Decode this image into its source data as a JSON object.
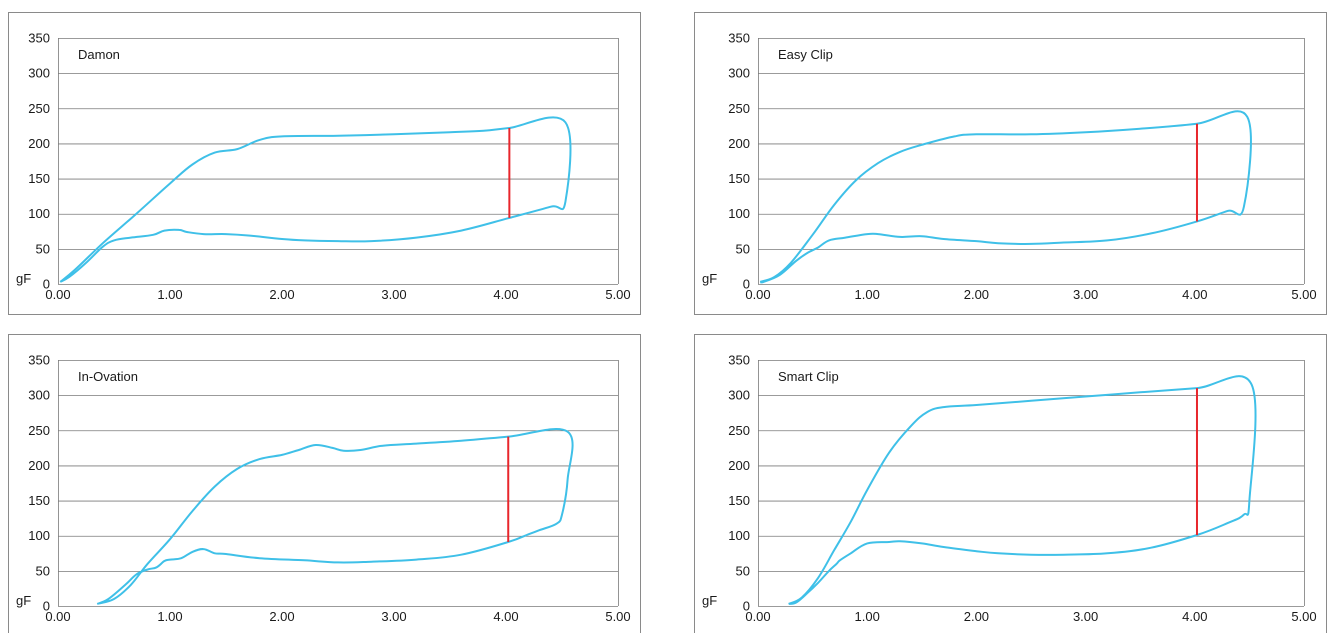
{
  "colors": {
    "curve": "#3fc0e8",
    "marker": "#e8262c",
    "grid": "#7a7a7a",
    "frame": "#8a8a8a",
    "text": "#1a1a1a"
  },
  "chart_data": [
    {
      "type": "line",
      "title": "Damon",
      "ylabel": "gF",
      "xlim": [
        0,
        5
      ],
      "ylim": [
        0,
        350
      ],
      "x_ticks": [
        "0.00",
        "1.00",
        "2.00",
        "3.00",
        "4.00",
        "5.00"
      ],
      "y_ticks": [
        "0",
        "50",
        "100",
        "150",
        "200",
        "250",
        "300",
        "350"
      ],
      "grid": true,
      "series": [
        {
          "values": [
            [
              0.02,
              3
            ],
            [
              0.15,
              20
            ],
            [
              0.4,
              58
            ],
            [
              0.7,
              100
            ],
            [
              1.0,
              143
            ],
            [
              1.2,
              170
            ],
            [
              1.4,
              187
            ],
            [
              1.6,
              192
            ],
            [
              1.8,
              205
            ],
            [
              2.0,
              210
            ],
            [
              2.5,
              211
            ],
            [
              3.0,
              213
            ],
            [
              3.5,
              216
            ],
            [
              3.8,
              218
            ],
            [
              4.03,
              222
            ],
            [
              4.53,
              230
            ],
            [
              4.53,
              117
            ],
            [
              4.4,
              110
            ],
            [
              4.03,
              94
            ],
            [
              3.6,
              76
            ],
            [
              3.2,
              66
            ],
            [
              2.8,
              61
            ],
            [
              2.5,
              61
            ],
            [
              2.2,
              62
            ],
            [
              2.0,
              64
            ],
            [
              1.7,
              69
            ],
            [
              1.5,
              71
            ],
            [
              1.3,
              71
            ],
            [
              1.15,
              74
            ],
            [
              1.08,
              77
            ],
            [
              0.95,
              76
            ],
            [
              0.85,
              70
            ],
            [
              0.65,
              66
            ],
            [
              0.5,
              62
            ],
            [
              0.4,
              53
            ],
            [
              0.25,
              30
            ],
            [
              0.1,
              10
            ],
            [
              0.02,
              3
            ]
          ]
        },
        {
          "values": [
            [
              4.03,
              222
            ],
            [
              4.03,
              94
            ]
          ]
        }
      ]
    },
    {
      "type": "line",
      "title": "Easy Clip",
      "ylabel": "gF",
      "xlim": [
        0,
        5
      ],
      "ylim": [
        0,
        350
      ],
      "x_ticks": [
        "0.00",
        "1.00",
        "2.00",
        "3.00",
        "4.00",
        "5.00"
      ],
      "y_ticks": [
        "0",
        "50",
        "100",
        "150",
        "200",
        "250",
        "300",
        "350"
      ],
      "grid": true,
      "series": [
        {
          "values": [
            [
              0.02,
              3
            ],
            [
              0.15,
              10
            ],
            [
              0.3,
              30
            ],
            [
              0.5,
              70
            ],
            [
              0.7,
              113
            ],
            [
              0.9,
              148
            ],
            [
              1.1,
              172
            ],
            [
              1.3,
              188
            ],
            [
              1.5,
              198
            ],
            [
              1.8,
              210
            ],
            [
              2.0,
              213
            ],
            [
              2.5,
              213
            ],
            [
              3.0,
              216
            ],
            [
              3.5,
              221
            ],
            [
              4.02,
              228
            ],
            [
              4.48,
              238
            ],
            [
              4.45,
              110
            ],
            [
              4.3,
              104
            ],
            [
              4.02,
              89
            ],
            [
              3.6,
              72
            ],
            [
              3.2,
              62
            ],
            [
              2.8,
              59
            ],
            [
              2.5,
              57
            ],
            [
              2.2,
              58
            ],
            [
              2.0,
              61
            ],
            [
              1.7,
              64
            ],
            [
              1.5,
              68
            ],
            [
              1.3,
              67
            ],
            [
              1.1,
              71
            ],
            [
              1.0,
              71
            ],
            [
              0.8,
              66
            ],
            [
              0.65,
              62
            ],
            [
              0.55,
              52
            ],
            [
              0.45,
              44
            ],
            [
              0.35,
              33
            ],
            [
              0.2,
              13
            ],
            [
              0.05,
              3
            ],
            [
              0.02,
              3
            ]
          ]
        },
        {
          "values": [
            [
              4.02,
              228
            ],
            [
              4.02,
              89
            ]
          ]
        }
      ]
    },
    {
      "type": "line",
      "title": "In-Ovation",
      "ylabel": "gF",
      "xlim": [
        0,
        5
      ],
      "ylim": [
        0,
        350
      ],
      "x_ticks": [
        "0.00",
        "1.00",
        "2.00",
        "3.00",
        "4.00",
        "5.00"
      ],
      "y_ticks": [
        "0",
        "50",
        "100",
        "150",
        "200",
        "250",
        "300",
        "350"
      ],
      "grid": true,
      "series": [
        {
          "values": [
            [
              0.35,
              3
            ],
            [
              0.5,
              10
            ],
            [
              0.65,
              30
            ],
            [
              0.8,
              60
            ],
            [
              1.0,
              95
            ],
            [
              1.2,
              135
            ],
            [
              1.4,
              170
            ],
            [
              1.6,
              195
            ],
            [
              1.8,
              209
            ],
            [
              2.0,
              215
            ],
            [
              2.15,
              222
            ],
            [
              2.3,
              229
            ],
            [
              2.45,
              225
            ],
            [
              2.55,
              221
            ],
            [
              2.7,
              222
            ],
            [
              2.9,
              228
            ],
            [
              3.2,
              231
            ],
            [
              3.6,
              235
            ],
            [
              4.02,
              241
            ],
            [
              4.55,
              248
            ],
            [
              4.55,
              180
            ],
            [
              4.5,
              130
            ],
            [
              4.45,
              117
            ],
            [
              4.3,
              108
            ],
            [
              4.2,
              102
            ],
            [
              4.02,
              91
            ],
            [
              3.6,
              73
            ],
            [
              3.2,
              66
            ],
            [
              2.8,
              63
            ],
            [
              2.5,
              62
            ],
            [
              2.2,
              65
            ],
            [
              1.8,
              68
            ],
            [
              1.5,
              74
            ],
            [
              1.4,
              75
            ],
            [
              1.3,
              81
            ],
            [
              1.2,
              77
            ],
            [
              1.1,
              68
            ],
            [
              1.0,
              66
            ],
            [
              0.95,
              64
            ],
            [
              0.88,
              55
            ],
            [
              0.8,
              52
            ],
            [
              0.7,
              45
            ],
            [
              0.6,
              30
            ],
            [
              0.45,
              10
            ],
            [
              0.35,
              3
            ]
          ]
        },
        {
          "values": [
            [
              4.02,
              241
            ],
            [
              4.02,
              91
            ]
          ]
        }
      ]
    },
    {
      "type": "line",
      "title": "Smart Clip",
      "ylabel": "gF",
      "xlim": [
        0,
        5
      ],
      "ylim": [
        0,
        350
      ],
      "x_ticks": [
        "0.00",
        "1.00",
        "2.00",
        "3.00",
        "4.00",
        "5.00"
      ],
      "y_ticks": [
        "0",
        "50",
        "100",
        "150",
        "200",
        "250",
        "300",
        "350"
      ],
      "grid": true,
      "series": [
        {
          "values": [
            [
              0.28,
              3
            ],
            [
              0.4,
              12
            ],
            [
              0.55,
              40
            ],
            [
              0.7,
              80
            ],
            [
              0.85,
              120
            ],
            [
              1.0,
              165
            ],
            [
              1.2,
              218
            ],
            [
              1.4,
              256
            ],
            [
              1.55,
              276
            ],
            [
              1.7,
              283
            ],
            [
              2.0,
              286
            ],
            [
              2.5,
              292
            ],
            [
              3.0,
              298
            ],
            [
              3.5,
              304
            ],
            [
              4.02,
              310
            ],
            [
              4.52,
              315
            ],
            [
              4.5,
              150
            ],
            [
              4.45,
              130
            ],
            [
              4.3,
              118
            ],
            [
              4.02,
              101
            ],
            [
              3.6,
              83
            ],
            [
              3.2,
              75
            ],
            [
              2.8,
              73
            ],
            [
              2.5,
              73
            ],
            [
              2.2,
              75
            ],
            [
              2.0,
              78
            ],
            [
              1.7,
              84
            ],
            [
              1.5,
              89
            ],
            [
              1.3,
              92
            ],
            [
              1.2,
              91
            ],
            [
              1.0,
              89
            ],
            [
              0.85,
              75
            ],
            [
              0.75,
              65
            ],
            [
              0.72,
              60
            ],
            [
              0.65,
              50
            ],
            [
              0.55,
              33
            ],
            [
              0.45,
              18
            ],
            [
              0.35,
              5
            ],
            [
              0.28,
              3
            ]
          ]
        },
        {
          "values": [
            [
              4.02,
              310
            ],
            [
              4.02,
              101
            ]
          ]
        }
      ]
    }
  ]
}
